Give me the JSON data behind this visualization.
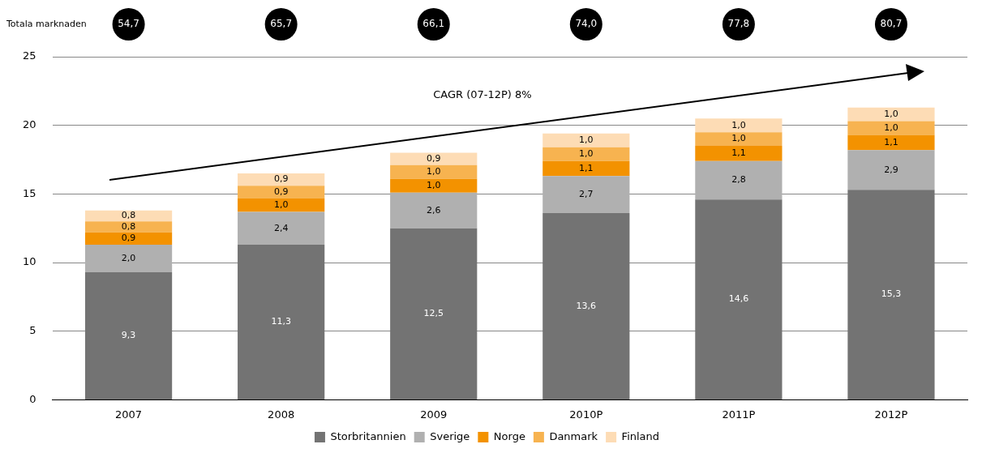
{
  "chart_data": {
    "type": "bar",
    "stacked": true,
    "categories": [
      "2007",
      "2008",
      "2009",
      "2010P",
      "2011P",
      "2012P"
    ],
    "series": [
      {
        "name": "Storbritannien",
        "color": "#737373",
        "values": [
          9.3,
          11.3,
          12.5,
          13.6,
          14.6,
          15.3
        ],
        "value_labels": [
          "9,3",
          "11,3",
          "12,5",
          "13,6",
          "14,6",
          "15,3"
        ]
      },
      {
        "name": "Sverige",
        "color": "#b0b0b0",
        "values": [
          2.0,
          2.4,
          2.6,
          2.7,
          2.8,
          2.9
        ],
        "value_labels": [
          "2,0",
          "2,4",
          "2,6",
          "2,7",
          "2,8",
          "2,9"
        ]
      },
      {
        "name": "Norge",
        "color": "#f39200",
        "values": [
          0.9,
          1.0,
          1.0,
          1.1,
          1.1,
          1.1
        ],
        "value_labels": [
          "0,9",
          "1,0",
          "1,0",
          "1,1",
          "1,1",
          "1,1"
        ]
      },
      {
        "name": "Danmark",
        "color": "#f7b350",
        "values": [
          0.8,
          0.9,
          1.0,
          1.0,
          1.0,
          1.0
        ],
        "value_labels": [
          "0,8",
          "0,9",
          "1,0",
          "1,0",
          "1,0",
          "1,0"
        ]
      },
      {
        "name": "Finland",
        "color": "#fddcb5",
        "values": [
          0.8,
          0.9,
          0.9,
          1.0,
          1.0,
          1.0
        ],
        "value_labels": [
          "0,8",
          "0,9",
          "0,9",
          "1,0",
          "1,0",
          "1,0"
        ]
      }
    ],
    "ylim": [
      0,
      25
    ],
    "yticks": [
      0,
      5,
      10,
      15,
      20,
      25
    ],
    "grid": "y",
    "legend": "bottom",
    "annotations": [
      "Totala marknaden",
      "CAGR (07-12P) 8%",
      "54,7",
      "65,7",
      "66,1",
      "74,0",
      "77,8",
      "80,7"
    ]
  }
}
